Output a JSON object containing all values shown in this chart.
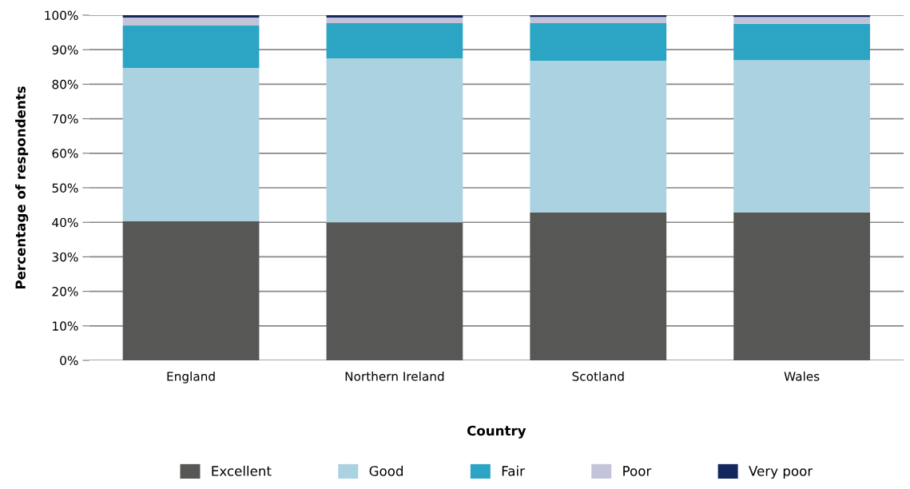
{
  "chart_data": {
    "type": "bar",
    "stacked": true,
    "xlabel": "Country",
    "ylabel": "Percentage of respondents",
    "categories": [
      "England",
      "Northern Ireland",
      "Scotland",
      "Wales"
    ],
    "series": [
      {
        "name": "Excellent",
        "color": "#575756",
        "values": [
          40.3,
          40.0,
          42.8,
          42.8
        ]
      },
      {
        "name": "Good",
        "color": "#abd2e0",
        "values": [
          44.4,
          47.5,
          44.0,
          44.2
        ]
      },
      {
        "name": "Fair",
        "color": "#2ca5c4",
        "values": [
          12.3,
          10.2,
          10.9,
          10.5
        ]
      },
      {
        "name": "Poor",
        "color": "#c3c3da",
        "values": [
          2.3,
          1.6,
          1.8,
          2.0
        ]
      },
      {
        "name": "Very poor",
        "color": "#12285f",
        "values": [
          0.7,
          0.7,
          0.5,
          0.5
        ]
      }
    ],
    "ylim": [
      0,
      100
    ],
    "yticks": [
      {
        "value": 0,
        "label": "0%"
      },
      {
        "value": 10,
        "label": "10%"
      },
      {
        "value": 20,
        "label": "20%"
      },
      {
        "value": 30,
        "label": "30%"
      },
      {
        "value": 40,
        "label": "40%"
      },
      {
        "value": 50,
        "label": "50%"
      },
      {
        "value": 60,
        "label": "60%"
      },
      {
        "value": 70,
        "label": "70%"
      },
      {
        "value": 80,
        "label": "80%"
      },
      {
        "value": 90,
        "label": "90%"
      },
      {
        "value": 100,
        "label": "100%"
      }
    ],
    "grid": "y",
    "legend": "bottom"
  }
}
